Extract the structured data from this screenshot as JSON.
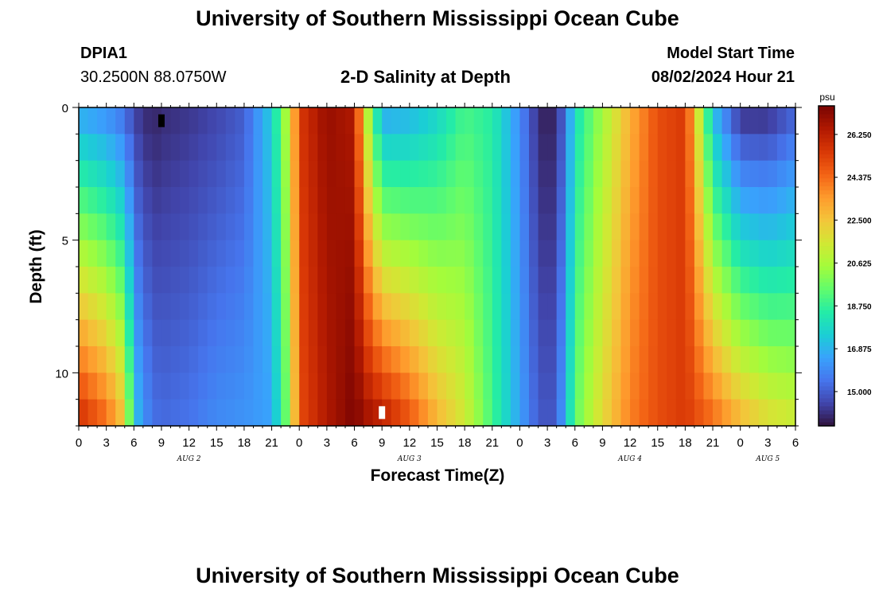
{
  "header": {
    "title": "University of Southern Mississippi Ocean Cube",
    "station_id": "DPIA1",
    "station_coords": "30.2500N  88.0750W",
    "chart_title": "2-D Salinity at Depth",
    "start_label": "Model Start Time",
    "start_value": "08/02/2024 Hour 21"
  },
  "footer": {
    "title": "University of Southern Mississippi Ocean Cube"
  },
  "colors": {
    "colormap": [
      "#30123b",
      "#4145ab",
      "#4675ed",
      "#39a2fc",
      "#1bcfd4",
      "#24eca6",
      "#61fc6c",
      "#a4fc3b",
      "#d1e834",
      "#f3c63a",
      "#fe9b2d",
      "#f36315",
      "#d93806",
      "#b11901",
      "#7a0402"
    ],
    "frame": "#000000"
  },
  "chart_data": {
    "type": "heatmap",
    "xlabel": "Forecast Time(Z)",
    "ylabel": "Depth (ft)",
    "colorbar_label": "psu",
    "colorbar_ticks": [
      "26.250",
      "24.375",
      "22.500",
      "20.625",
      "18.750",
      "16.875",
      "15.000"
    ],
    "value_range": [
      13.5,
      27.5
    ],
    "x_tick_labels": [
      "0",
      "3",
      "6",
      "9",
      "12",
      "15",
      "18",
      "21",
      "0",
      "3",
      "6",
      "9",
      "12",
      "15",
      "18",
      "21",
      "0",
      "3",
      "6",
      "9",
      "12",
      "15",
      "18",
      "21",
      "0",
      "3",
      "6"
    ],
    "y_tick_labels": [
      "0",
      "5",
      "10"
    ],
    "date_labels": [
      "AUG 2",
      "AUG 3",
      "AUG 4",
      "AUG 5"
    ],
    "x_hours": [
      0,
      78
    ],
    "depth_ft": [
      0,
      12
    ],
    "key_hours": [
      0,
      3,
      5,
      6,
      7,
      8,
      9,
      12,
      15,
      18,
      21,
      23,
      24,
      27,
      30,
      31,
      33,
      36,
      39,
      42,
      45,
      48,
      50,
      51,
      52,
      53,
      54,
      57,
      60,
      63,
      66,
      69,
      72,
      75,
      78
    ],
    "surface_salinity": [
      16.5,
      16.0,
      15.3,
      14.4,
      14.1,
      13.8,
      14.0,
      14.2,
      14.5,
      15.0,
      17.5,
      21.5,
      25.5,
      27.0,
      26.5,
      22.0,
      16.5,
      16.8,
      17.6,
      19.0,
      18.5,
      16.0,
      14.0,
      13.7,
      14.0,
      15.5,
      18.0,
      20.5,
      23.0,
      25.0,
      25.5,
      17.0,
      14.0,
      14.0,
      15.0
    ],
    "bottom_salinity": [
      26.0,
      24.5,
      22.5,
      17.5,
      16.3,
      15.5,
      15.3,
      15.5,
      16.0,
      16.2,
      16.5,
      20.5,
      25.0,
      26.5,
      27.5,
      27.0,
      26.5,
      25.0,
      23.0,
      21.5,
      19.0,
      16.5,
      15.0,
      14.8,
      15.0,
      17.0,
      19.5,
      22.0,
      24.0,
      25.0,
      25.5,
      24.5,
      23.0,
      22.0,
      21.5
    ],
    "markers": [
      {
        "hour": 9,
        "depth_ft": 0.5,
        "color": "#000000"
      },
      {
        "hour": 33,
        "depth_ft": 11.5,
        "color": "#ffffff"
      }
    ]
  }
}
